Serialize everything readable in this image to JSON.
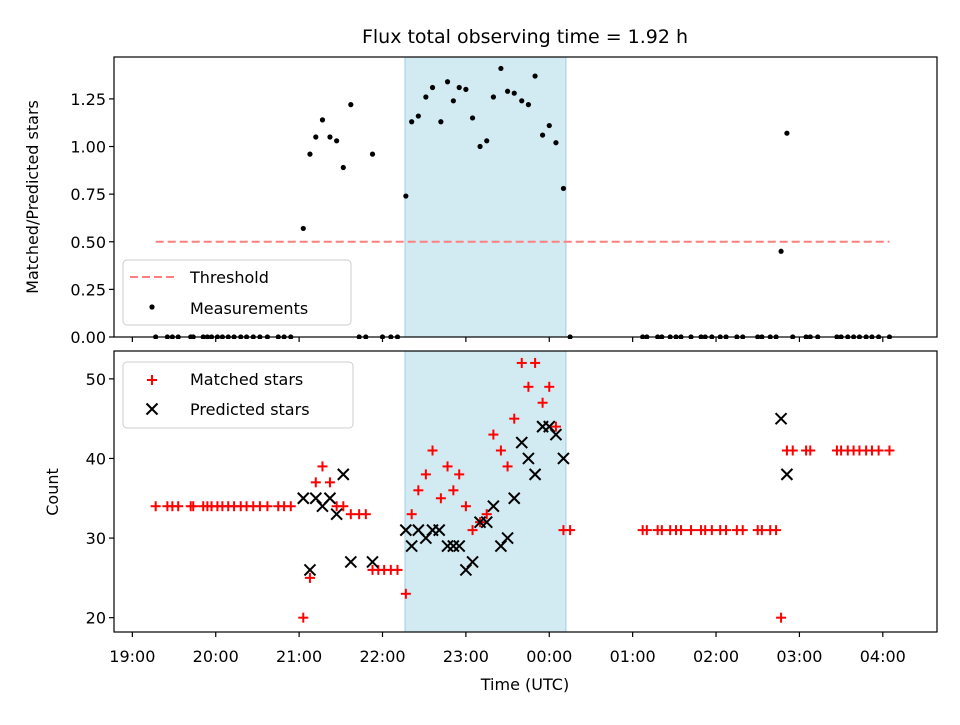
{
  "figure_title": "Flux total observing time = 1.92 h",
  "colors": {
    "threshold": "#ff7f7f",
    "measurement": "#000000",
    "matched": "#ff0000",
    "predicted": "#000000",
    "highlight": "#add8e6"
  },
  "chart_data": [
    {
      "type": "scatter",
      "title": "Flux total observing time = 1.92 h",
      "ylabel": "Matched/Predicted stars",
      "xlabel": "",
      "x_unit": "hours since 19:00 UTC",
      "xlim": [
        -0.22,
        9.65
      ],
      "ylim": [
        0,
        1.47
      ],
      "yticks": [
        0.0,
        0.25,
        0.5,
        0.75,
        1.0,
        1.25
      ],
      "ytick_labels": [
        "0.00",
        "0.25",
        "0.50",
        "0.75",
        "1.00",
        "1.25"
      ],
      "highlight_band": [
        3.27,
        5.2
      ],
      "threshold": {
        "name": "Threshold",
        "y": 0.5,
        "x_range": [
          0.28,
          9.08
        ]
      },
      "legend": {
        "placement": "lower left",
        "entries": [
          "Threshold",
          "Measurements"
        ]
      },
      "series": [
        {
          "name": "Measurements",
          "points": [
            [
              0.28,
              0
            ],
            [
              0.42,
              0
            ],
            [
              0.48,
              0
            ],
            [
              0.55,
              0
            ],
            [
              0.7,
              0
            ],
            [
              0.73,
              0
            ],
            [
              0.85,
              0
            ],
            [
              0.9,
              0
            ],
            [
              0.95,
              0
            ],
            [
              1.02,
              0
            ],
            [
              1.08,
              0
            ],
            [
              1.15,
              0
            ],
            [
              1.22,
              0
            ],
            [
              1.3,
              0
            ],
            [
              1.37,
              0
            ],
            [
              1.45,
              0
            ],
            [
              1.53,
              0
            ],
            [
              1.62,
              0
            ],
            [
              1.75,
              0
            ],
            [
              1.82,
              0
            ],
            [
              1.9,
              0
            ],
            [
              2.05,
              0.57
            ],
            [
              2.13,
              0.96
            ],
            [
              2.2,
              1.05
            ],
            [
              2.28,
              1.14
            ],
            [
              2.37,
              1.05
            ],
            [
              2.45,
              1.03
            ],
            [
              2.53,
              0.89
            ],
            [
              2.62,
              1.22
            ],
            [
              2.72,
              0
            ],
            [
              2.8,
              0
            ],
            [
              2.88,
              0.96
            ],
            [
              3.0,
              0
            ],
            [
              3.1,
              0
            ],
            [
              3.18,
              0
            ],
            [
              3.28,
              0.74
            ],
            [
              3.35,
              1.13
            ],
            [
              3.43,
              1.16
            ],
            [
              3.52,
              1.26
            ],
            [
              3.6,
              1.31
            ],
            [
              3.7,
              1.13
            ],
            [
              3.78,
              1.34
            ],
            [
              3.85,
              1.24
            ],
            [
              3.92,
              1.31
            ],
            [
              4.0,
              1.3
            ],
            [
              4.08,
              1.15
            ],
            [
              4.17,
              1.0
            ],
            [
              4.25,
              1.03
            ],
            [
              4.33,
              1.26
            ],
            [
              4.42,
              1.41
            ],
            [
              4.5,
              1.29
            ],
            [
              4.58,
              1.28
            ],
            [
              4.67,
              1.24
            ],
            [
              4.75,
              1.22
            ],
            [
              4.83,
              1.37
            ],
            [
              4.92,
              1.06
            ],
            [
              5.0,
              1.11
            ],
            [
              5.08,
              1.02
            ],
            [
              5.17,
              0.78
            ],
            [
              5.25,
              0
            ],
            [
              6.12,
              0
            ],
            [
              6.17,
              0
            ],
            [
              6.3,
              0
            ],
            [
              6.35,
              0
            ],
            [
              6.45,
              0
            ],
            [
              6.52,
              0
            ],
            [
              6.58,
              0
            ],
            [
              6.7,
              0
            ],
            [
              6.82,
              0
            ],
            [
              6.87,
              0
            ],
            [
              6.95,
              0
            ],
            [
              7.05,
              0
            ],
            [
              7.12,
              0
            ],
            [
              7.25,
              0
            ],
            [
              7.32,
              0
            ],
            [
              7.5,
              0
            ],
            [
              7.55,
              0
            ],
            [
              7.65,
              0
            ],
            [
              7.72,
              0
            ],
            [
              7.78,
              0.45
            ],
            [
              7.85,
              1.07
            ],
            [
              7.92,
              0
            ],
            [
              8.08,
              0
            ],
            [
              8.13,
              0
            ],
            [
              8.22,
              0
            ],
            [
              8.45,
              0
            ],
            [
              8.5,
              0
            ],
            [
              8.58,
              0
            ],
            [
              8.65,
              0
            ],
            [
              8.72,
              0
            ],
            [
              8.8,
              0
            ],
            [
              8.87,
              0
            ],
            [
              8.95,
              0
            ],
            [
              9.08,
              0
            ]
          ]
        }
      ]
    },
    {
      "type": "scatter",
      "ylabel": "Count",
      "xlabel": "Time (UTC)",
      "xlim": [
        -0.22,
        9.65
      ],
      "ylim": [
        18.2,
        53.5
      ],
      "yticks": [
        20,
        30,
        40,
        50
      ],
      "xtick_values": [
        0,
        1,
        2,
        3,
        4,
        5,
        6,
        7,
        8,
        9
      ],
      "xtick_labels": [
        "19:00",
        "20:00",
        "21:00",
        "22:00",
        "23:00",
        "00:00",
        "01:00",
        "02:00",
        "03:00",
        "04:00"
      ],
      "highlight_band": [
        3.27,
        5.2
      ],
      "legend": {
        "placement": "upper left",
        "entries": [
          "Matched stars",
          "Predicted stars"
        ]
      },
      "series": [
        {
          "name": "Matched stars",
          "points": [
            [
              0.28,
              34
            ],
            [
              0.42,
              34
            ],
            [
              0.48,
              34
            ],
            [
              0.55,
              34
            ],
            [
              0.7,
              34
            ],
            [
              0.73,
              34
            ],
            [
              0.85,
              34
            ],
            [
              0.9,
              34
            ],
            [
              0.95,
              34
            ],
            [
              1.02,
              34
            ],
            [
              1.08,
              34
            ],
            [
              1.15,
              34
            ],
            [
              1.22,
              34
            ],
            [
              1.3,
              34
            ],
            [
              1.37,
              34
            ],
            [
              1.45,
              34
            ],
            [
              1.53,
              34
            ],
            [
              1.62,
              34
            ],
            [
              1.75,
              34
            ],
            [
              1.82,
              34
            ],
            [
              1.9,
              34
            ],
            [
              2.05,
              20
            ],
            [
              2.13,
              25
            ],
            [
              2.2,
              37
            ],
            [
              2.28,
              39
            ],
            [
              2.37,
              37
            ],
            [
              2.45,
              34
            ],
            [
              2.53,
              34
            ],
            [
              2.62,
              33
            ],
            [
              2.72,
              33
            ],
            [
              2.8,
              33
            ],
            [
              2.88,
              26
            ],
            [
              2.95,
              26
            ],
            [
              3.02,
              26
            ],
            [
              3.1,
              26
            ],
            [
              3.18,
              26
            ],
            [
              3.28,
              23
            ],
            [
              3.35,
              33
            ],
            [
              3.43,
              36
            ],
            [
              3.52,
              38
            ],
            [
              3.6,
              41
            ],
            [
              3.7,
              35
            ],
            [
              3.78,
              39
            ],
            [
              3.85,
              36
            ],
            [
              3.92,
              38
            ],
            [
              4.0,
              34
            ],
            [
              4.08,
              31
            ],
            [
              4.17,
              32
            ],
            [
              4.25,
              33
            ],
            [
              4.33,
              43
            ],
            [
              4.42,
              41
            ],
            [
              4.5,
              39
            ],
            [
              4.58,
              45
            ],
            [
              4.67,
              52
            ],
            [
              4.75,
              49
            ],
            [
              4.83,
              52
            ],
            [
              4.92,
              47
            ],
            [
              5.0,
              49
            ],
            [
              5.08,
              44
            ],
            [
              5.17,
              31
            ],
            [
              5.25,
              31
            ],
            [
              6.12,
              31
            ],
            [
              6.17,
              31
            ],
            [
              6.3,
              31
            ],
            [
              6.35,
              31
            ],
            [
              6.45,
              31
            ],
            [
              6.52,
              31
            ],
            [
              6.58,
              31
            ],
            [
              6.7,
              31
            ],
            [
              6.82,
              31
            ],
            [
              6.87,
              31
            ],
            [
              6.95,
              31
            ],
            [
              7.05,
              31
            ],
            [
              7.12,
              31
            ],
            [
              7.25,
              31
            ],
            [
              7.32,
              31
            ],
            [
              7.5,
              31
            ],
            [
              7.55,
              31
            ],
            [
              7.65,
              31
            ],
            [
              7.72,
              31
            ],
            [
              7.78,
              20
            ],
            [
              7.85,
              41
            ],
            [
              7.92,
              41
            ],
            [
              8.08,
              41
            ],
            [
              8.13,
              41
            ],
            [
              8.45,
              41
            ],
            [
              8.5,
              41
            ],
            [
              8.58,
              41
            ],
            [
              8.65,
              41
            ],
            [
              8.72,
              41
            ],
            [
              8.8,
              41
            ],
            [
              8.87,
              41
            ],
            [
              8.95,
              41
            ],
            [
              9.08,
              41
            ]
          ]
        },
        {
          "name": "Predicted stars",
          "points": [
            [
              2.05,
              35
            ],
            [
              2.13,
              26
            ],
            [
              2.2,
              35
            ],
            [
              2.28,
              34
            ],
            [
              2.37,
              35
            ],
            [
              2.45,
              33
            ],
            [
              2.53,
              38
            ],
            [
              2.62,
              27
            ],
            [
              2.88,
              27
            ],
            [
              3.28,
              31
            ],
            [
              3.35,
              29
            ],
            [
              3.43,
              31
            ],
            [
              3.52,
              30
            ],
            [
              3.6,
              31
            ],
            [
              3.68,
              31
            ],
            [
              3.78,
              29
            ],
            [
              3.85,
              29
            ],
            [
              3.92,
              29
            ],
            [
              4.0,
              26
            ],
            [
              4.08,
              27
            ],
            [
              4.17,
              32
            ],
            [
              4.25,
              32
            ],
            [
              4.33,
              34
            ],
            [
              4.42,
              29
            ],
            [
              4.5,
              30
            ],
            [
              4.58,
              35
            ],
            [
              4.67,
              42
            ],
            [
              4.75,
              40
            ],
            [
              4.83,
              38
            ],
            [
              4.92,
              44
            ],
            [
              5.0,
              44
            ],
            [
              5.08,
              43
            ],
            [
              5.17,
              40
            ],
            [
              7.78,
              45
            ],
            [
              7.85,
              38
            ]
          ]
        }
      ]
    }
  ]
}
